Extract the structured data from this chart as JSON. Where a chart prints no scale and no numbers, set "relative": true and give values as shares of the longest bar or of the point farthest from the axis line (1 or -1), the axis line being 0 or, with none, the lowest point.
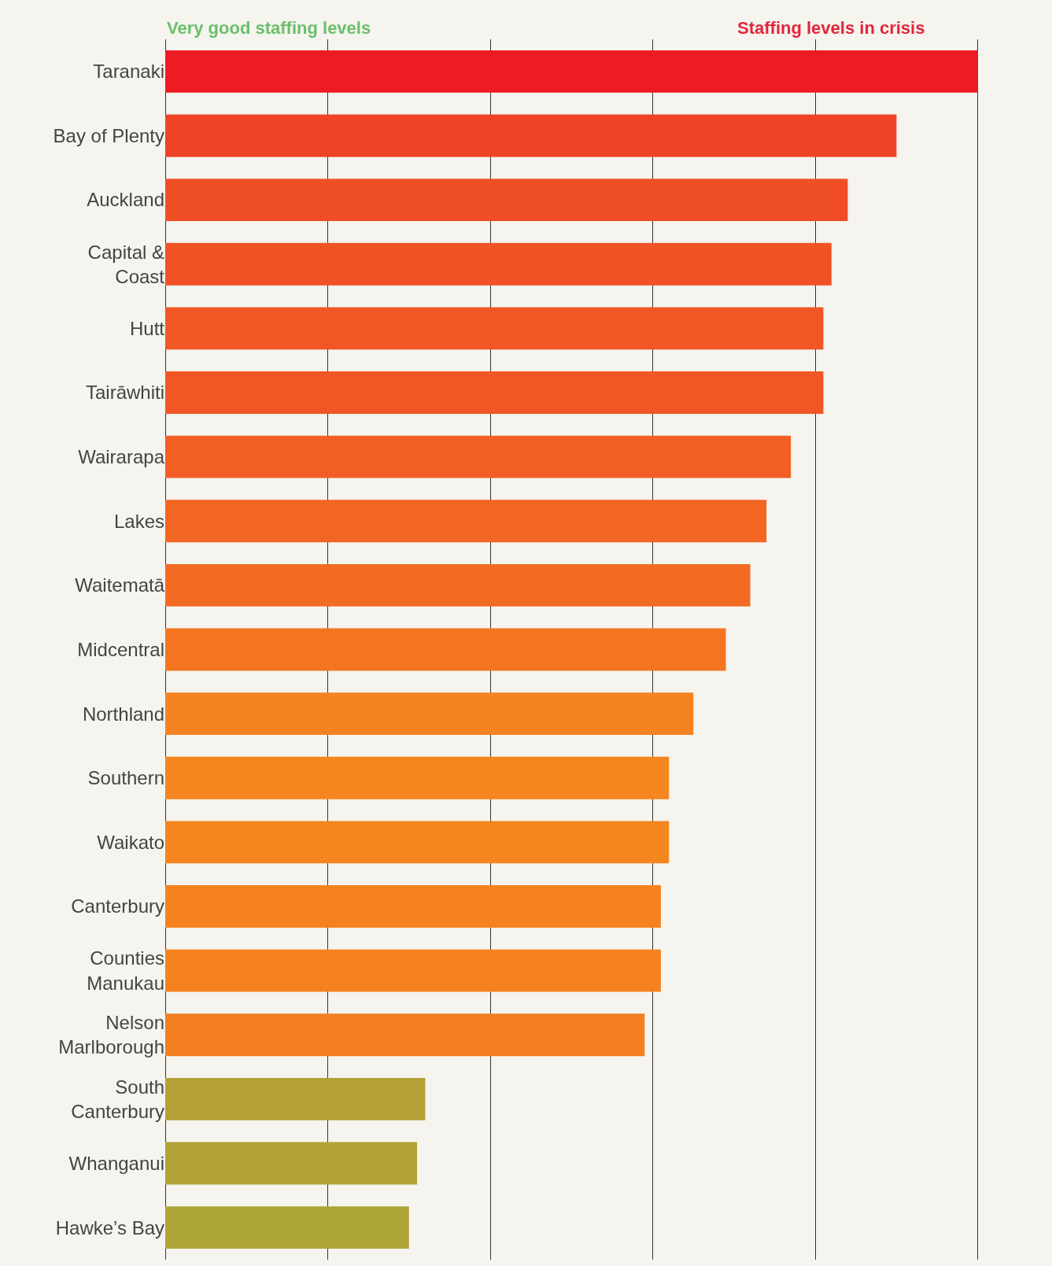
{
  "chart_data": {
    "type": "bar",
    "orientation": "horizontal",
    "relative": true,
    "grid": "x",
    "categories": [
      "Taranaki",
      "Bay of Plenty",
      "Auckland",
      "Capital & Coast",
      "Hutt",
      "Tairāwhiti",
      "Wairarapa",
      "Lakes",
      "Waitematā",
      "Midcentral",
      "Northland",
      "Southern",
      "Waikato",
      "Canterbury",
      "Counties Manukau",
      "Nelson Marlborough",
      "South Canterbury",
      "Whanganui",
      "Hawke’s Bay"
    ],
    "values": [
      1,
      0.9,
      0.84,
      0.82,
      0.81,
      0.81,
      0.77,
      0.74,
      0.72,
      0.69,
      0.65,
      0.62,
      0.62,
      0.61,
      0.61,
      0.59,
      0.32,
      0.31,
      0.3
    ],
    "colors": [
      "#ed1c24",
      "#ee4327",
      "#f04f26",
      "#f05226",
      "#f05725",
      "#f05725",
      "#f15f24",
      "#f26623",
      "#f36b22",
      "#f47521",
      "#f58220",
      "#f5851f",
      "#f5851f",
      "#f5821f",
      "#f5821f",
      "#f37f20",
      "#b4a236",
      "#b1a337",
      "#aea539"
    ],
    "annotations": [
      "Very good staffing levels",
      "Staffing levels in crisis"
    ]
  }
}
